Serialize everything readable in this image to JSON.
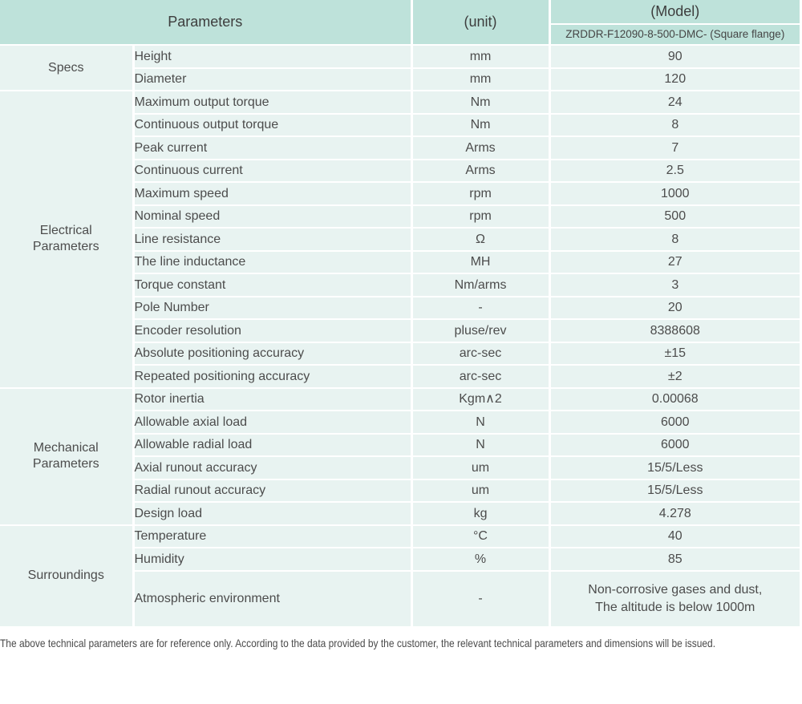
{
  "colors": {
    "header_bg": "#bee2da",
    "cell_bg": "#e8f3f1",
    "border": "#ffffff",
    "text": "#4a4a4a"
  },
  "header": {
    "parameters_label": "Parameters",
    "unit_label": "(unit)",
    "model_label": "(Model)",
    "model_value": "ZRDDR-F12090-8-500-DMC- (Square flange)"
  },
  "sections": [
    {
      "group": "Specs",
      "rows": [
        {
          "name": "Height",
          "unit": "mm",
          "value": "90"
        },
        {
          "name": "Diameter",
          "unit": "mm",
          "value": "120"
        }
      ]
    },
    {
      "group": "Electrical Parameters",
      "rows": [
        {
          "name": "Maximum output torque",
          "unit": "Nm",
          "value": "24"
        },
        {
          "name": "Continuous output torque",
          "unit": "Nm",
          "value": "8"
        },
        {
          "name": "Peak current",
          "unit": "Arms",
          "value": "7"
        },
        {
          "name": "Continuous current",
          "unit": "Arms",
          "value": "2.5"
        },
        {
          "name": "Maximum speed",
          "unit": "rpm",
          "value": "1000"
        },
        {
          "name": "Nominal speed",
          "unit": "rpm",
          "value": "500"
        },
        {
          "name": "Line resistance",
          "unit": "Ω",
          "value": "8"
        },
        {
          "name": "The line inductance",
          "unit": "MH",
          "value": "27"
        },
        {
          "name": "Torque constant",
          "unit": "Nm/arms",
          "value": "3"
        },
        {
          "name": "Pole Number",
          "unit": "-",
          "value": "20"
        },
        {
          "name": "Encoder resolution",
          "unit": "pluse/rev",
          "value": "8388608"
        },
        {
          "name": "Absolute positioning accuracy",
          "unit": "arc-sec",
          "value": "±15"
        },
        {
          "name": "Repeated positioning accuracy",
          "unit": "arc-sec",
          "value": "±2"
        }
      ]
    },
    {
      "group": "Mechanical Parameters",
      "rows": [
        {
          "name": "Rotor inertia",
          "unit": "Kgm∧2",
          "value": "0.00068"
        },
        {
          "name": "Allowable axial load",
          "unit": "N",
          "value": "6000"
        },
        {
          "name": "Allowable radial load",
          "unit": "N",
          "value": "6000"
        },
        {
          "name": "Axial runout accuracy",
          "unit": "um",
          "value": "15/5/Less"
        },
        {
          "name": "Radial runout accuracy",
          "unit": "um",
          "value": "15/5/Less"
        },
        {
          "name": "Design load",
          "unit": "kg",
          "value": "4.278"
        }
      ]
    },
    {
      "group": "Surroundings",
      "rows": [
        {
          "name": "Temperature",
          "unit": "°C",
          "value": "40"
        },
        {
          "name": "Humidity",
          "unit": "%",
          "value": "85"
        },
        {
          "name": "Atmospheric environment",
          "unit": "-",
          "tall": true,
          "value_lines": [
            "Non-corrosive gases and dust,",
            "The altitude is below 1000m"
          ]
        }
      ]
    }
  ],
  "footer": {
    "note": "The above technical parameters are for reference only. According to the data provided by the customer, the relevant technical parameters and dimensions will be issued."
  }
}
